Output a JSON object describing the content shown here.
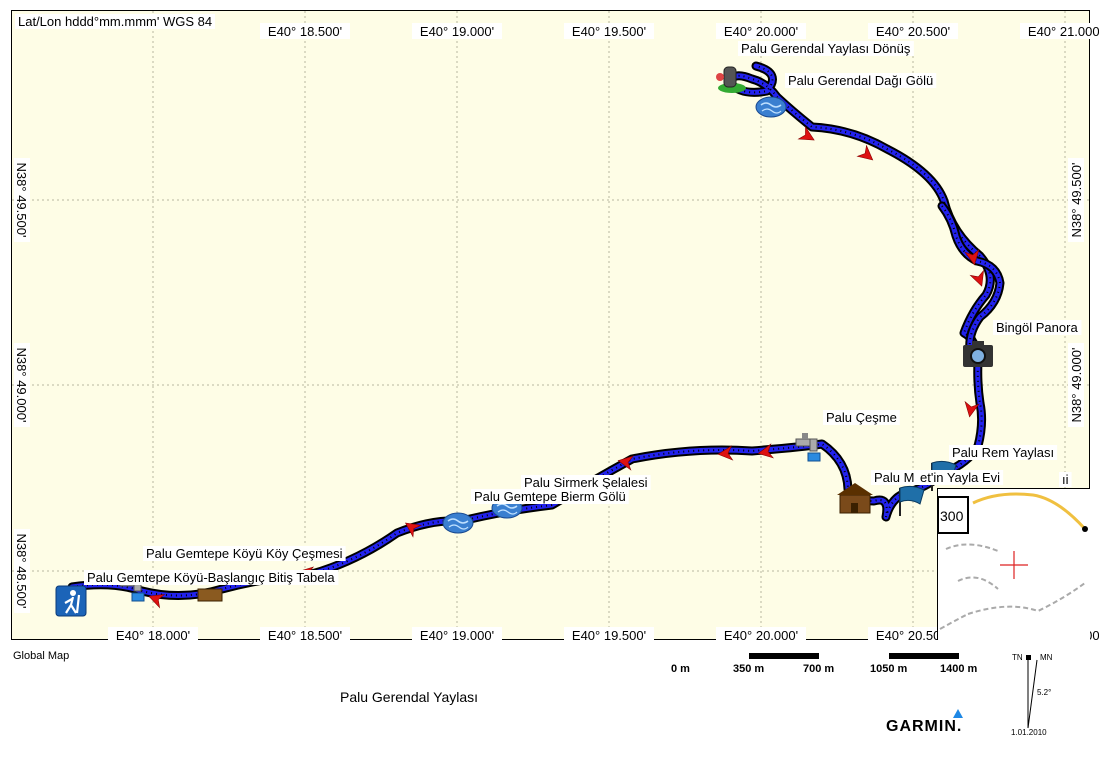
{
  "map": {
    "coord_format": "Lat/Lon hddd°mm.mmm' WGS 84",
    "lon_ticks": [
      "E40° 18.000'",
      "E40° 18.500'",
      "E40° 19.000'",
      "E40° 19.500'",
      "E40° 20.000'",
      "E40° 20.500'",
      "E40° 21.000'"
    ],
    "lat_ticks": [
      "N38° 49.500'",
      "N38° 49.000'",
      "N38° 48.500'"
    ],
    "track_color": "#2222ee",
    "arrow_color": "#dd1111",
    "background_color": "#fefde6",
    "waypoints": [
      {
        "name": "Palu Gerendal Yaylası Dönüş",
        "icon": "hiker-pack-icon"
      },
      {
        "name": "Palu Gerendal Dağı Gölü",
        "icon": "lake-icon"
      },
      {
        "name": "Bingöl Panora",
        "icon": "camera-icon"
      },
      {
        "name": "Palu Çeşme",
        "icon": "faucet-icon"
      },
      {
        "name": "Palu Rem Yaylası",
        "icon": "flag-icon"
      },
      {
        "name": "Palu M",
        "icon": "flag-icon"
      },
      {
        "name": "et'in Yayla Evi",
        "icon": "cabin-icon"
      },
      {
        "name": "ıi",
        "icon": "flag-icon"
      },
      {
        "name": "Palu Sirmerk Şelalesi",
        "icon": "lake-icon"
      },
      {
        "name": "Palu Gemtepe Bierm Gölü",
        "icon": "lake-icon"
      },
      {
        "name": "Palu Gemtepe Köyü Köy Çeşmesi",
        "icon": "faucet-icon"
      },
      {
        "name": "Palu Gemtepe Köyü-Başlangıç Bitiş Tabela",
        "icon": "hiker-icon"
      }
    ],
    "inset": {
      "value": "300"
    }
  },
  "footer": {
    "source": "Global Map",
    "title": "Palu Gerendal Yaylası",
    "brand": "GARMIN.",
    "scale_labels": [
      "0 m",
      "350 m",
      "700 m",
      "1050 m",
      "1400 m"
    ],
    "north": {
      "tn": "TN",
      "mn": "MN",
      "declination": "5.2°",
      "date": "1.01.2010"
    }
  }
}
